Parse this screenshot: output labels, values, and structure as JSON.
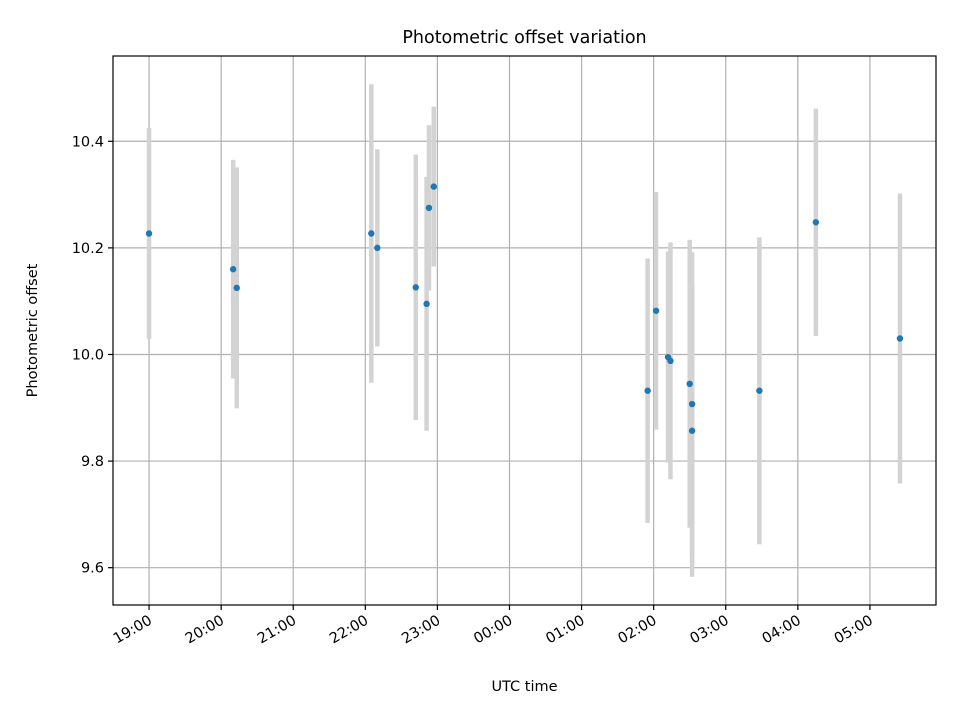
{
  "chart_data": {
    "type": "scatter",
    "title": "Photometric offset variation",
    "xlabel": "UTC time",
    "ylabel": "Photometric offset",
    "x_axis": "time",
    "x_start_label": "2019-01-01 18:30",
    "xlim": [
      "18:30",
      "05:55"
    ],
    "ylim": [
      9.53,
      10.56
    ],
    "grid": true,
    "legend": "none",
    "marker_color": "#1f77b4",
    "errorbar_color": "#d3d3d3",
    "x_ticks": [
      "19:00",
      "20:00",
      "21:00",
      "22:00",
      "23:00",
      "00:00",
      "01:00",
      "02:00",
      "03:00",
      "04:00",
      "05:00"
    ],
    "y_ticks": [
      "9.6",
      "9.8",
      "10.0",
      "10.2",
      "10.4"
    ],
    "points": [
      {
        "x": "19:00",
        "y": 10.227,
        "err": 0.198
      },
      {
        "x": "20:10",
        "y": 10.16,
        "err": 0.205
      },
      {
        "x": "20:13",
        "y": 10.125,
        "err": 0.226
      },
      {
        "x": "22:05",
        "y": 10.227,
        "err": 0.28
      },
      {
        "x": "22:10",
        "y": 10.2,
        "err": 0.185
      },
      {
        "x": "22:42",
        "y": 10.126,
        "err": 0.249
      },
      {
        "x": "22:51",
        "y": 10.095,
        "err": 0.238
      },
      {
        "x": "22:53",
        "y": 10.275,
        "err": 0.155
      },
      {
        "x": "22:57",
        "y": 10.315,
        "err": 0.15
      },
      {
        "x": "01:55",
        "y": 9.932,
        "err": 0.248
      },
      {
        "x": "02:02",
        "y": 10.082,
        "err": 0.223
      },
      {
        "x": "02:12",
        "y": 9.995,
        "err": 0.198
      },
      {
        "x": "02:14",
        "y": 9.988,
        "err": 0.222
      },
      {
        "x": "02:30",
        "y": 9.945,
        "err": 0.27
      },
      {
        "x": "02:32",
        "y": 9.907,
        "err": 0.285
      },
      {
        "x": "02:32",
        "y": 9.857,
        "err": 0.274
      },
      {
        "x": "03:28",
        "y": 9.932,
        "err": 0.288
      },
      {
        "x": "04:15",
        "y": 10.248,
        "err": 0.213
      },
      {
        "x": "05:25",
        "y": 10.03,
        "err": 0.272
      }
    ]
  }
}
